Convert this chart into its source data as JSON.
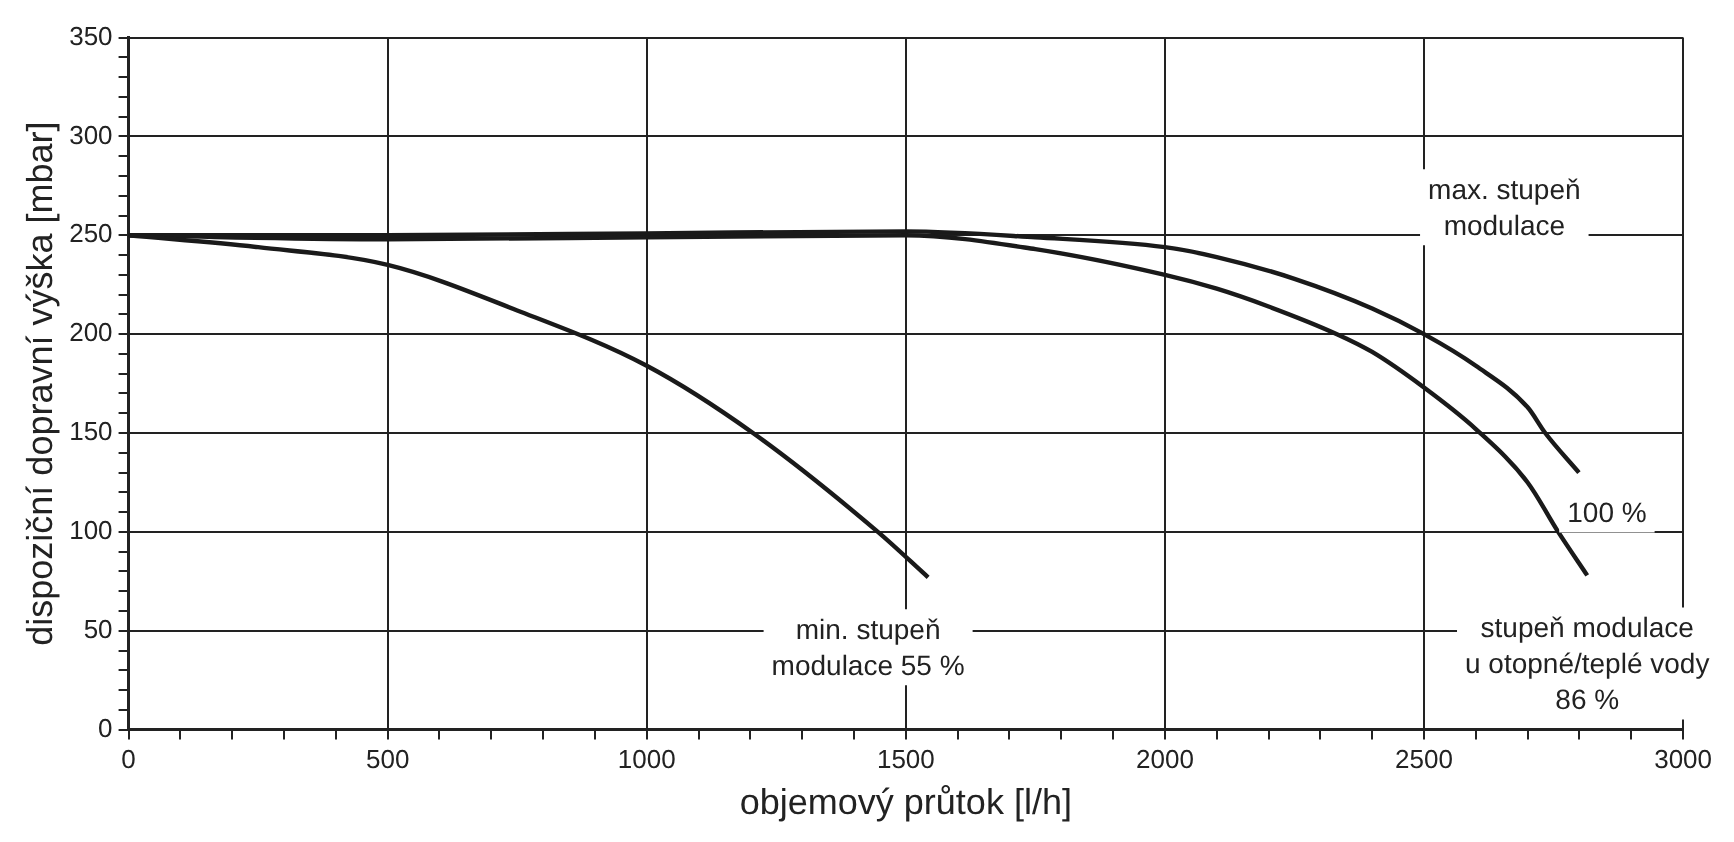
{
  "chart_data": {
    "type": "line",
    "xlabel": "objemový průtok [l/h]",
    "ylabel": "dispoziční dopravní výška [mbar]",
    "xlim": [
      0,
      3000
    ],
    "ylim": [
      0,
      350
    ],
    "xticks": [
      0,
      {
        "value": 100,
        "label": null
      },
      {
        "value": 200,
        "label": null
      },
      {
        "value": 300,
        "label": null
      },
      {
        "value": 400,
        "label": null
      },
      500,
      {
        "value": 600,
        "label": null
      },
      {
        "value": 700,
        "label": null
      },
      {
        "value": 800,
        "label": null
      },
      {
        "value": 900,
        "label": null
      },
      1000,
      {
        "value": 1100,
        "label": null
      },
      {
        "value": 1200,
        "label": null
      },
      {
        "value": 1300,
        "label": null
      },
      {
        "value": 1400,
        "label": null
      },
      1500,
      {
        "value": 1600,
        "label": null
      },
      {
        "value": 1700,
        "label": null
      },
      {
        "value": 1800,
        "label": null
      },
      {
        "value": 1900,
        "label": null
      },
      2000,
      {
        "value": 2100,
        "label": null
      },
      {
        "value": 2200,
        "label": null
      },
      {
        "value": 2300,
        "label": null
      },
      {
        "value": 2400,
        "label": null
      },
      2500,
      {
        "value": 2600,
        "label": null
      },
      {
        "value": 2700,
        "label": null
      },
      {
        "value": 2800,
        "label": null
      },
      {
        "value": 2900,
        "label": null
      },
      3000
    ],
    "yticks": [
      0,
      {
        "value": 10,
        "label": null
      },
      {
        "value": 20,
        "label": null
      },
      {
        "value": 30,
        "label": null
      },
      {
        "value": 40,
        "label": null
      },
      50,
      {
        "value": 60,
        "label": null
      },
      {
        "value": 70,
        "label": null
      },
      {
        "value": 80,
        "label": null
      },
      {
        "value": 90,
        "label": null
      },
      100,
      {
        "value": 110,
        "label": null
      },
      {
        "value": 120,
        "label": null
      },
      {
        "value": 130,
        "label": null
      },
      {
        "value": 140,
        "label": null
      },
      150,
      {
        "value": 160,
        "label": null
      },
      {
        "value": 170,
        "label": null
      },
      {
        "value": 180,
        "label": null
      },
      {
        "value": 190,
        "label": null
      },
      200,
      {
        "value": 210,
        "label": null
      },
      {
        "value": 220,
        "label": null
      },
      {
        "value": 230,
        "label": null
      },
      {
        "value": 240,
        "label": null
      },
      250,
      {
        "value": 260,
        "label": null
      },
      {
        "value": 270,
        "label": null
      },
      {
        "value": 280,
        "label": null
      },
      {
        "value": 290,
        "label": null
      },
      300,
      {
        "value": 310,
        "label": null
      },
      {
        "value": 320,
        "label": null
      },
      {
        "value": 330,
        "label": null
      },
      {
        "value": 340,
        "label": null
      },
      350
    ],
    "grid": true,
    "legend": false,
    "marker": "none",
    "line_style": "solid",
    "series": [
      {
        "color": "#1a1a1a",
        "x": [
          0,
          250,
          500,
          750,
          1000,
          1205,
          1446,
          1543
        ],
        "values": [
          250,
          244,
          235,
          212,
          184,
          150,
          100,
          77
        ]
      },
      {
        "color": "#1a1a1a",
        "x": [
          0,
          500,
          1000,
          1500,
          1750,
          2000,
          2100,
          2250,
          2400,
          2500,
          2600,
          2700,
          2734,
          2799
        ],
        "values": [
          250,
          250,
          251,
          252,
          249,
          244,
          239,
          228,
          213,
          200,
          184,
          163,
          150,
          130
        ]
      },
      {
        "color": "#1a1a1a",
        "x": [
          0,
          500,
          1000,
          1500,
          1750,
          2000,
          2100,
          2200,
          2332,
          2400,
          2500,
          2600,
          2700,
          2759,
          2815
        ],
        "values": [
          250,
          248,
          249,
          250,
          243,
          230,
          223,
          214,
          200,
          191,
          173,
          152,
          125,
          100,
          78
        ]
      }
    ],
    "annotations": [
      {
        "text": "min. stupeň\nmodulace 55 %",
        "x": 1543,
        "y": 77
      },
      "max. stupeň\nmodulace",
      {
        "text": "100 %",
        "x": 2799,
        "y": 130
      },
      {
        "text": "stupeň modulace\nu otopné/teplé vody\n86 %",
        "x": 2815,
        "y": 78
      }
    ]
  }
}
